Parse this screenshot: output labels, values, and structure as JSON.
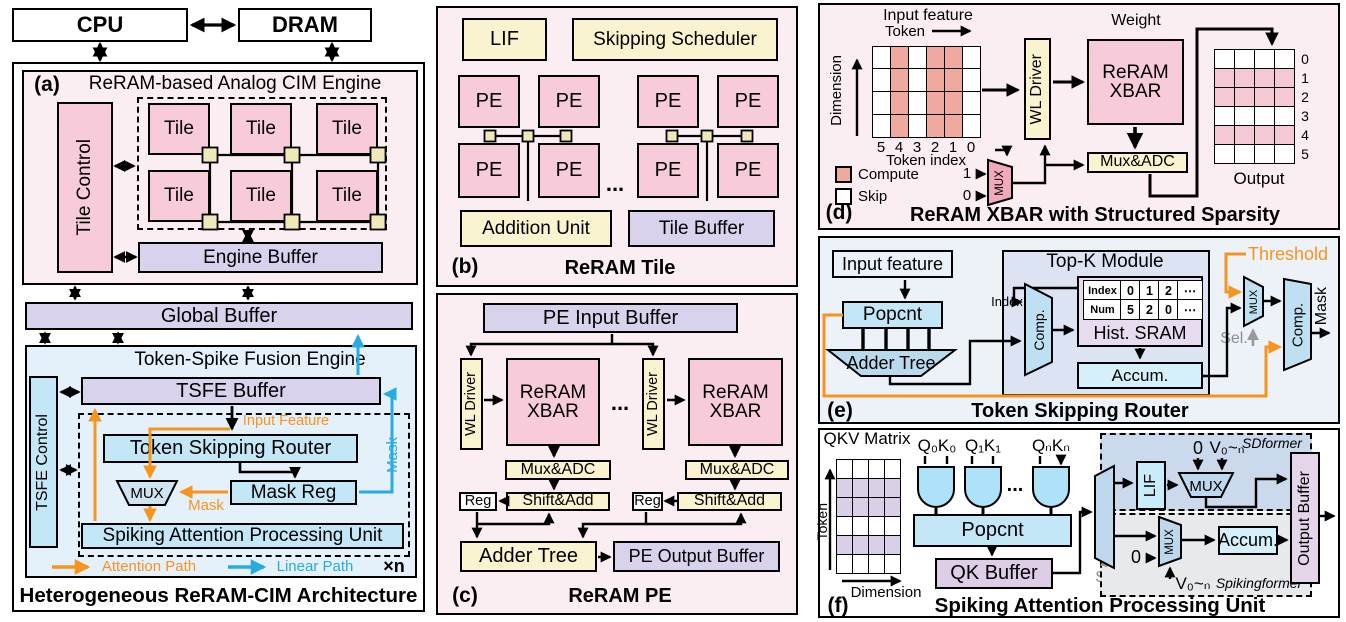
{
  "system": {
    "cpu": "CPU",
    "dram": "DRAM"
  },
  "panel_a": {
    "tag": "(a)",
    "engine_title": "ReRAM-based Analog CIM Engine",
    "tile_control": "Tile Control",
    "tile": "Tile",
    "engine_buffer": "Engine Buffer",
    "global_buffer": "Global Buffer",
    "tsfe_title": "Token-Spike Fusion Engine",
    "tsfe_control": "TSFE Control",
    "tsfe_buffer": "TSFE Buffer",
    "input_feature_label": "Input Feature",
    "token_skipping_router": "Token Skipping Router",
    "mux": "MUX",
    "mask_reg": "Mask Reg",
    "mask_attention_label": "Mask",
    "mask_linear_label": "Mask",
    "sapu": "Spiking Attention Processing Unit",
    "legend": {
      "attention": "Attention Path",
      "linear": "Linear Path",
      "multiplier": "×n"
    },
    "caption": "Heterogeneous ReRAM-CIM Architecture"
  },
  "panel_b": {
    "tag": "(b)",
    "lif": "LIF",
    "skipping_scheduler": "Skipping Scheduler",
    "pe": "PE",
    "ellipsis": "...",
    "addition_unit": "Addition Unit",
    "tile_buffer": "Tile Buffer",
    "caption": "ReRAM Tile"
  },
  "panel_c": {
    "tag": "(c)",
    "pe_input_buffer": "PE Input Buffer",
    "wl_driver": "WL Driver",
    "reram_xbar": "ReRAM XBAR",
    "ellipsis": "...",
    "mux_adc": "Mux&ADC",
    "reg": "Reg",
    "shift_add": "Shift&Add",
    "adder_tree": "Adder Tree",
    "pe_output_buffer": "PE Output Buffer",
    "caption": "ReRAM PE"
  },
  "panel_d": {
    "tag": "(d)",
    "input_feature": "Input feature",
    "token_axis": "Token",
    "dimension_axis": "Dimension",
    "input_grid": {
      "rows": 4,
      "cols": 6,
      "on_cols": [
        1,
        3,
        4
      ],
      "on_class": "on-salmon"
    },
    "token_index_labels": [
      "5",
      "4",
      "3",
      "2",
      "1",
      "0"
    ],
    "token_index_caption": "Token index",
    "legend_compute": "Compute",
    "legend_skip": "Skip",
    "sel_one": "1",
    "sel_zero": "0",
    "mux": "MUX",
    "wl_driver": "WL Driver",
    "weight": "Weight",
    "reram_xbar": "ReRAM XBAR",
    "mux_adc": "Mux&ADC",
    "output_grid": {
      "rows": 6,
      "cols": 4,
      "on_rows": [
        1,
        2,
        4
      ],
      "on_class": "on-pink"
    },
    "output_row_labels": [
      "0",
      "1",
      "2",
      "3",
      "4",
      "5"
    ],
    "output_label": "Output",
    "caption": "ReRAM XBAR with Structured Sparsity"
  },
  "panel_e": {
    "tag": "(e)",
    "input_feature": "Input feature",
    "popcnt": "Popcnt",
    "adder_tree": "Adder Tree",
    "topk_title": "Top-K Module",
    "index_label": "Index",
    "comparator": "Comp.",
    "hist_table": {
      "rows": [
        [
          "Index",
          "0",
          "1",
          "2",
          "⋯"
        ],
        [
          "Num",
          "5",
          "2",
          "0",
          "⋯"
        ]
      ]
    },
    "hist_sram": "Hist. SRAM",
    "accumulator": "Accum.",
    "threshold": "Threshold",
    "mux": "MUX",
    "sel": "Sel.",
    "comparator2": "Comp.",
    "mask": "Mask",
    "caption": "Token Skipping Router"
  },
  "panel_f": {
    "tag": "(f)",
    "qkv_matrix": "QKV Matrix",
    "token_axis": "Token",
    "dimension_axis": "Dimension",
    "qkv_grid": {
      "rows": 6,
      "cols": 4,
      "on_rows": [
        1,
        2,
        4
      ],
      "on_class": "on-lavender"
    },
    "gate_labels": [
      "Q₀K₀",
      "Q₁K₁",
      "QₙKₙ"
    ],
    "ellipsis": "...",
    "popcnt": "Popcnt",
    "qk_buffer": "QK Buffer",
    "sel": "Sel.",
    "lif": "LIF",
    "mux_top": "MUX",
    "zero_top": "0",
    "v_top": "V₀~ₙ",
    "sdformer": "SDformer",
    "mux_bottom": "MUX",
    "zero_bottom": "0",
    "v_bottom": "V₀~ₙ",
    "accumulator": "Accum.",
    "spikingformer": "Spikingformer",
    "output_buffer": "Output Buffer",
    "caption": "Spiking Attention Processing Unit"
  },
  "colors": {
    "attention_path": "#F7941E",
    "linear_path": "#29ABE2",
    "compute": "#F0A99E",
    "skip": "#FFFFFF"
  }
}
